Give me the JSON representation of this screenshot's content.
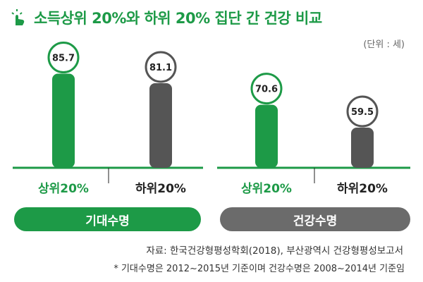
{
  "header": {
    "title": "소득상위 20%와 하위 20% 집단 간 건강 비교",
    "unit": "(단위 : 세)",
    "icon": "tap-hand-icon"
  },
  "colors": {
    "top": "#1d9a47",
    "bottom": "#555555",
    "baseline": "#1d9a47",
    "pill_top": "#1d9a47",
    "pill_bottom": "#6b6b6b"
  },
  "chart_data": [
    {
      "type": "bar",
      "title": "기대수명",
      "categories": [
        "상위20%",
        "하위20%"
      ],
      "values": [
        85.7,
        81.1
      ],
      "ylim": [
        40,
        90
      ]
    },
    {
      "type": "bar",
      "title": "건강수명",
      "categories": [
        "상위20%",
        "하위20%"
      ],
      "values": [
        70.6,
        59.5
      ],
      "ylim": [
        40,
        90
      ]
    }
  ],
  "footer": {
    "source": "자료: 한국건강형평성학회(2018), 부산광역시 건강형평성보고서",
    "note": "* 기대수명은 2012~2015년 기준이며 건강수명은 2008~2014년  기준임"
  }
}
